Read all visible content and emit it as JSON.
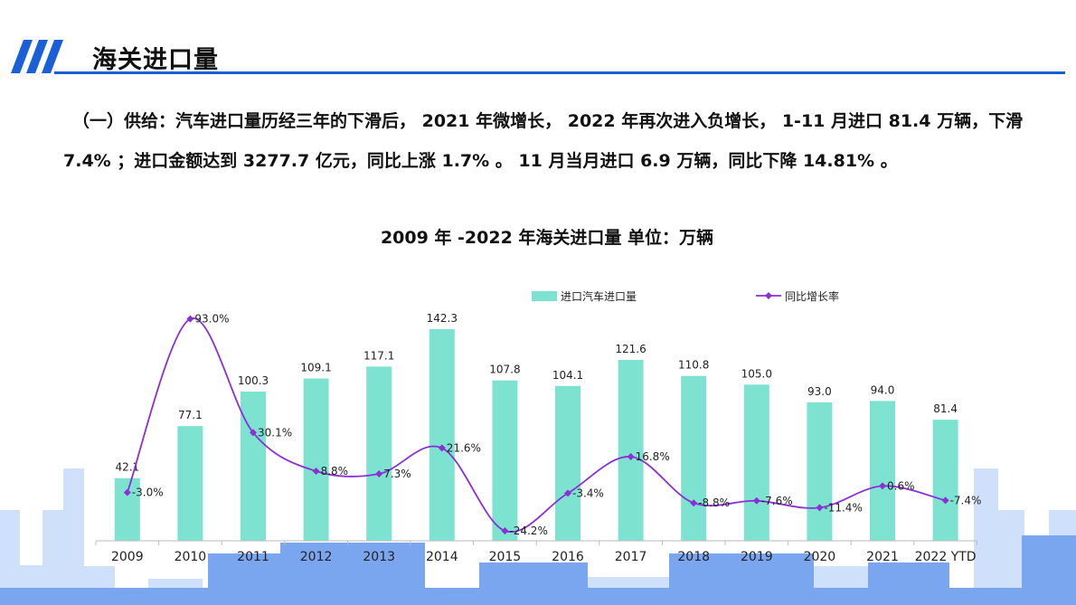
{
  "header": {
    "title": "海关进口量"
  },
  "summary": "（一）供给：汽车进口量历经三年的下滑后， 2021 年微增长， 2022 年再次进入负增长， 1-11 月进口 81.4 万辆，下滑 7.4% ；进口金额达到 3277.7 亿元，同比上涨 1.7% 。 11 月当月进口 6.9 万辆，同比下降 14.81% 。",
  "chart_data": {
    "type": "bar",
    "title": "2009 年 -2022 年海关进口量  单位：万辆",
    "categories": [
      "2009",
      "2010",
      "2011",
      "2012",
      "2013",
      "2014",
      "2015",
      "2016",
      "2017",
      "2018",
      "2019",
      "2020",
      "2021",
      "2022 YTD"
    ],
    "series": [
      {
        "name": "进口汽车进口量",
        "kind": "bar",
        "color": "#7de3d0",
        "values": [
          42.1,
          77.1,
          100.3,
          109.1,
          117.1,
          142.3,
          107.8,
          104.1,
          121.6,
          110.8,
          105.0,
          93.0,
          94.0,
          81.4
        ],
        "labels": [
          "42.1",
          "77.1",
          "100.3",
          "109.1",
          "117.1",
          "142.3",
          "107.8",
          "104.1",
          "121.6",
          "110.8",
          "105.0",
          "93.0",
          "94.0",
          "81.4"
        ]
      },
      {
        "name": "同比增长率",
        "kind": "line",
        "color": "#8b2fd6",
        "values": [
          -3.0,
          93.0,
          30.1,
          8.8,
          7.3,
          21.6,
          -24.2,
          -3.4,
          16.8,
          -8.8,
          -7.6,
          -11.4,
          0.6,
          -7.4
        ],
        "labels": [
          "-3.0%",
          "93.0%",
          "30.1%",
          "8.8%",
          "7.3%",
          "21.6%",
          "-24.2%",
          "-3.4%",
          "16.8%",
          "-8.8%",
          "-7.6%",
          "-11.4%",
          "0.6%",
          "-7.4%"
        ]
      }
    ],
    "legend_position": "top",
    "grid": false
  }
}
